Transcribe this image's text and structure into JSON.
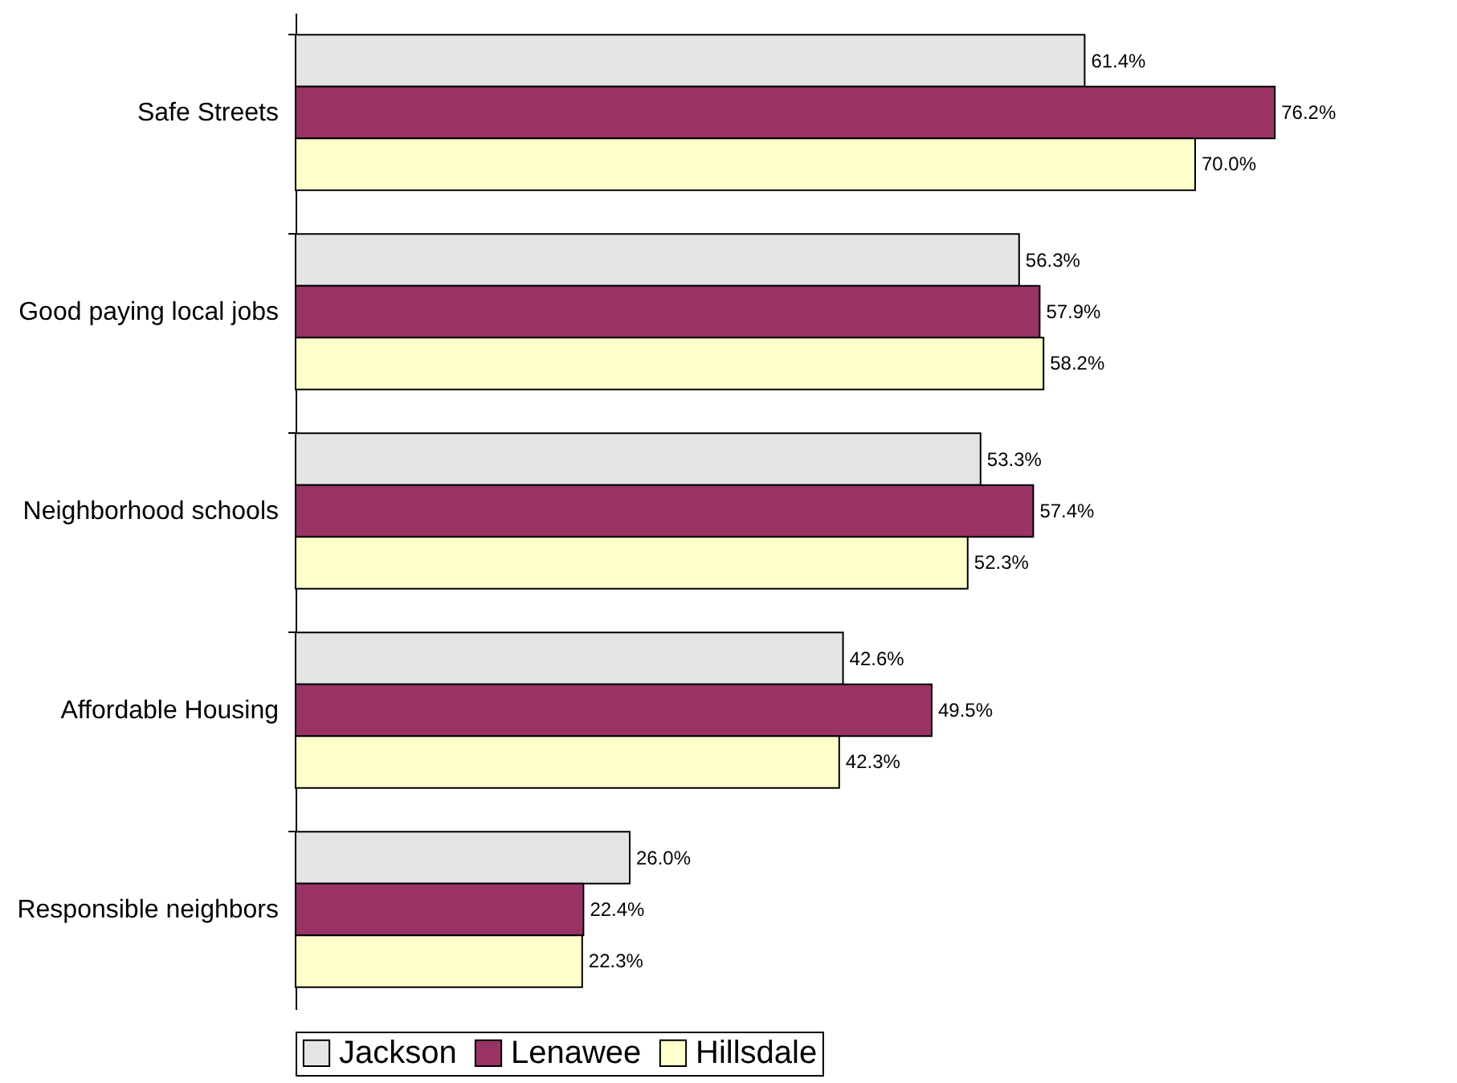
{
  "chart_data": {
    "type": "bar",
    "orientation": "horizontal",
    "legend": "bottom",
    "categories": [
      "Safe  Streets",
      "Good paying local jobs",
      "Neighborhood schools",
      "Affordable  Housing",
      "Responsible  neighbors"
    ],
    "series": [
      {
        "name": "Jackson",
        "color": "#e4e4e4",
        "values": [
          61.4,
          56.3,
          53.3,
          42.6,
          26.0
        ],
        "value_labels": [
          "61.4%",
          "56.3%",
          "53.3%",
          "42.6%",
          "26.0%"
        ]
      },
      {
        "name": "Lenawee",
        "color": "#993366",
        "values": [
          76.2,
          57.9,
          57.4,
          49.5,
          22.4
        ],
        "value_labels": [
          "76.2%",
          "57.9%",
          "57.4%",
          "49.5%",
          "22.4%"
        ]
      },
      {
        "name": "Hillsdale",
        "color": "#ffffcc",
        "values": [
          70.0,
          58.2,
          52.3,
          42.3,
          22.3
        ],
        "value_labels": [
          "70.0%",
          "58.2%",
          "52.3%",
          "42.3%",
          "22.3%"
        ]
      }
    ]
  }
}
